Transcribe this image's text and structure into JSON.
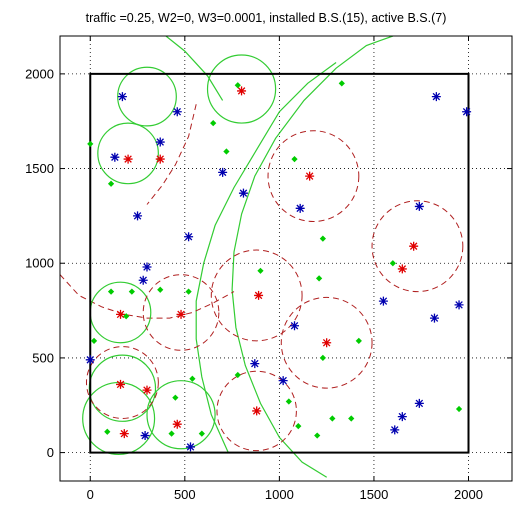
{
  "chart_data": {
    "type": "scatter",
    "title": "traffic =0.25, W2=0, W3=0.0001, installed B.S.(15), active B.S.(7)",
    "xlabel": "",
    "ylabel": "",
    "xlim": [
      -160,
      2230
    ],
    "ylim": [
      -150,
      2200
    ],
    "xticks": [
      0,
      500,
      1000,
      1500,
      2000
    ],
    "yticks": [
      0,
      500,
      1000,
      1500,
      2000
    ],
    "xtick_labels": [
      "0",
      "500",
      "1000",
      "1500",
      "2000"
    ],
    "ytick_labels": [
      "0",
      "500",
      "1000",
      "1500",
      "2000"
    ],
    "grid": "dotted",
    "legend": "none",
    "region_square": {
      "x": [
        0,
        2000
      ],
      "y": [
        0,
        2000
      ]
    },
    "colors": {
      "red": "#e00000",
      "blue": "#0000b0",
      "green": "#00cc00",
      "dark_red": "#b02020",
      "square": "#000000"
    },
    "series": [
      {
        "marker": "star",
        "color": "red",
        "points": [
          [
            200,
            1550
          ],
          [
            370,
            1550
          ],
          [
            1160,
            1460
          ],
          [
            1710,
            1090
          ],
          [
            1650,
            970
          ],
          [
            890,
            830
          ],
          [
            160,
            730
          ],
          [
            480,
            730
          ],
          [
            1250,
            580
          ],
          [
            880,
            220
          ],
          [
            160,
            360
          ],
          [
            300,
            330
          ],
          [
            460,
            150
          ],
          [
            180,
            100
          ],
          [
            800,
            1910
          ]
        ]
      },
      {
        "marker": "star",
        "color": "blue",
        "points": [
          [
            170,
            1880
          ],
          [
            460,
            1800
          ],
          [
            370,
            1640
          ],
          [
            1830,
            1880
          ],
          [
            1990,
            1800
          ],
          [
            130,
            1560
          ],
          [
            250,
            1250
          ],
          [
            520,
            1140
          ],
          [
            700,
            1480
          ],
          [
            810,
            1370
          ],
          [
            1110,
            1290
          ],
          [
            1740,
            1300
          ],
          [
            300,
            980
          ],
          [
            280,
            910
          ],
          [
            1550,
            800
          ],
          [
            1950,
            780
          ],
          [
            1820,
            710
          ],
          [
            1080,
            670
          ],
          [
            0,
            490
          ],
          [
            870,
            470
          ],
          [
            1020,
            380
          ],
          [
            1740,
            260
          ],
          [
            1650,
            190
          ],
          [
            1610,
            120
          ],
          [
            290,
            90
          ],
          [
            530,
            30
          ]
        ]
      },
      {
        "marker": "dot",
        "color": "green",
        "points": [
          [
            1330,
            1950
          ],
          [
            780,
            1940
          ],
          [
            650,
            1740
          ],
          [
            0,
            1630
          ],
          [
            720,
            1590
          ],
          [
            1080,
            1550
          ],
          [
            110,
            1420
          ],
          [
            1230,
            1130
          ],
          [
            1600,
            1000
          ],
          [
            900,
            960
          ],
          [
            1210,
            920
          ],
          [
            110,
            850
          ],
          [
            220,
            850
          ],
          [
            370,
            860
          ],
          [
            520,
            850
          ],
          [
            190,
            720
          ],
          [
            20,
            590
          ],
          [
            1420,
            590
          ],
          [
            780,
            410
          ],
          [
            1230,
            500
          ],
          [
            540,
            390
          ],
          [
            450,
            290
          ],
          [
            1050,
            270
          ],
          [
            1280,
            180
          ],
          [
            1380,
            180
          ],
          [
            1100,
            140
          ],
          [
            1950,
            230
          ],
          [
            90,
            110
          ],
          [
            430,
            100
          ],
          [
            590,
            100
          ],
          [
            1200,
            90
          ]
        ]
      }
    ],
    "green_circles": [
      [
        300,
        1880,
        155
      ],
      [
        200,
        1580,
        160
      ],
      [
        800,
        1920,
        180
      ],
      [
        160,
        740,
        160
      ],
      [
        170,
        340,
        175
      ],
      [
        150,
        180,
        190
      ],
      [
        480,
        200,
        180
      ]
    ],
    "red_dashed_circles": [
      [
        1180,
        1460,
        240
      ],
      [
        1730,
        1090,
        240
      ],
      [
        880,
        830,
        240
      ],
      [
        1250,
        580,
        240
      ],
      [
        480,
        740,
        200
      ],
      [
        170,
        370,
        190
      ],
      [
        880,
        220,
        210
      ]
    ],
    "green_arcs": [
      [
        [
          730,
          0
        ],
        [
          640,
          200
        ],
        [
          590,
          400
        ],
        [
          560,
          600
        ],
        [
          560,
          800
        ],
        [
          600,
          1000
        ],
        [
          660,
          1200
        ],
        [
          760,
          1400
        ],
        [
          880,
          1600
        ],
        [
          1000,
          1800
        ],
        [
          1150,
          1950
        ],
        [
          1300,
          2060
        ]
      ],
      [
        [
          1250,
          -130
        ],
        [
          1120,
          -50
        ],
        [
          1000,
          80
        ],
        [
          900,
          260
        ],
        [
          820,
          460
        ],
        [
          770,
          660
        ],
        [
          750,
          860
        ],
        [
          760,
          1060
        ],
        [
          800,
          1260
        ],
        [
          870,
          1460
        ],
        [
          980,
          1660
        ],
        [
          1130,
          1860
        ],
        [
          1300,
          2030
        ],
        [
          1460,
          2150
        ],
        [
          1600,
          2200
        ]
      ],
      [
        [
          400,
          2200
        ],
        [
          500,
          2120
        ],
        [
          620,
          1990
        ],
        [
          700,
          1860
        ]
      ]
    ],
    "red_dashed_arcs": [
      [
        [
          -160,
          940
        ],
        [
          -60,
          830
        ],
        [
          60,
          770
        ],
        [
          180,
          730
        ],
        [
          300,
          710
        ],
        [
          420,
          710
        ],
        [
          540,
          740
        ],
        [
          650,
          790
        ],
        [
          760,
          850
        ]
      ],
      [
        [
          560,
          1840
        ],
        [
          520,
          1670
        ],
        [
          450,
          1520
        ],
        [
          380,
          1410
        ],
        [
          300,
          1310
        ]
      ]
    ]
  }
}
